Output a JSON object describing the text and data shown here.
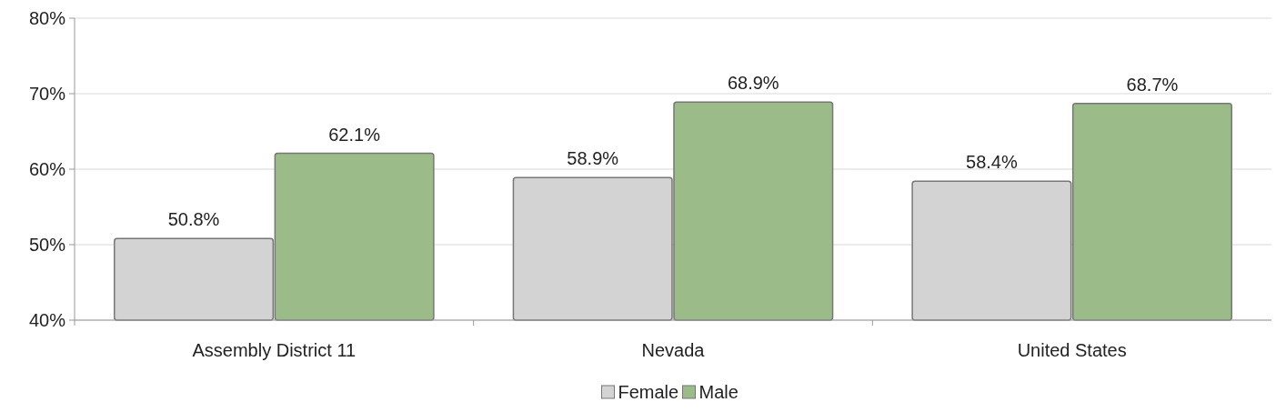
{
  "chart_data": {
    "type": "bar",
    "categories": [
      "Assembly District 11",
      "Nevada",
      "United States"
    ],
    "series": [
      {
        "name": "Female",
        "color": "#d3d3d3",
        "values": [
          50.8,
          58.9,
          58.4
        ],
        "value_labels": [
          "50.8%",
          "58.9%",
          "58.4%"
        ]
      },
      {
        "name": "Male",
        "color": "#9bbb89",
        "values": [
          62.1,
          68.9,
          68.7
        ],
        "value_labels": [
          "62.1%",
          "68.9%",
          "68.7%"
        ]
      }
    ],
    "ylim": [
      40,
      80
    ],
    "yticks": [
      {
        "value": 40,
        "label": "40%"
      },
      {
        "value": 50,
        "label": "50%"
      },
      {
        "value": 60,
        "label": "60%"
      },
      {
        "value": 70,
        "label": "70%"
      },
      {
        "value": 80,
        "label": "80%"
      }
    ],
    "grid": "y",
    "legend": "bottom"
  }
}
